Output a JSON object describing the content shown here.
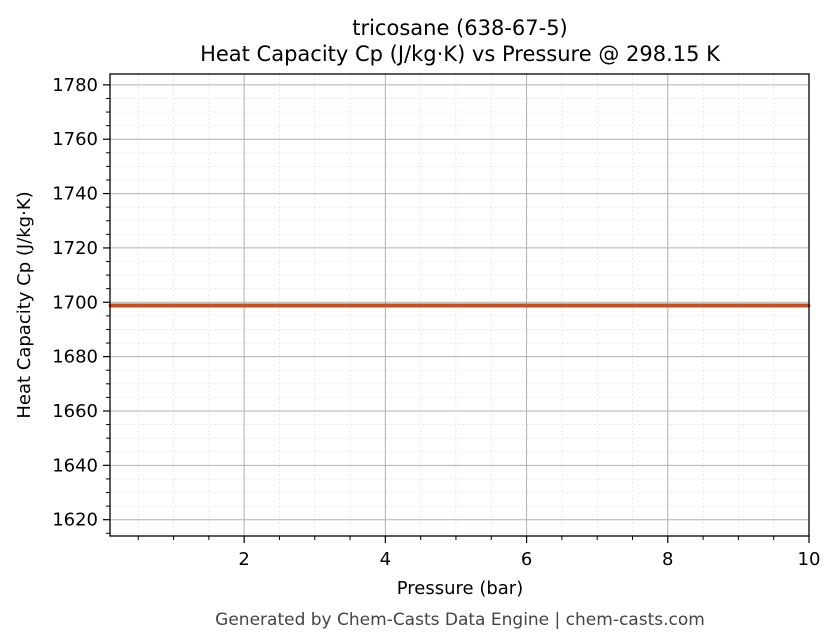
{
  "chart_data": {
    "type": "line",
    "title": "tricosane (638-67-5)",
    "subtitle": "Heat Capacity Cp (J/kg·K) vs Pressure @ 298.15 K",
    "xlabel": "Pressure (bar)",
    "ylabel": "Heat Capacity Cp (J/kg·K)",
    "xlim": [
      0.1,
      10
    ],
    "ylim": [
      1614,
      1784
    ],
    "x_ticks": [
      2,
      4,
      6,
      8,
      10
    ],
    "y_ticks": [
      1620,
      1640,
      1660,
      1680,
      1700,
      1720,
      1740,
      1760,
      1780
    ],
    "grid": true,
    "series": [
      {
        "color": "#c0502a",
        "x": [
          0.1,
          1,
          2,
          3,
          4,
          5,
          6,
          7,
          8,
          9,
          10
        ],
        "values": [
          1698.8,
          1698.8,
          1698.8,
          1698.8,
          1698.8,
          1698.8,
          1698.8,
          1698.8,
          1698.8,
          1698.8,
          1698.8
        ]
      }
    ]
  },
  "footer": "Generated by Chem-Casts Data Engine | chem-casts.com"
}
